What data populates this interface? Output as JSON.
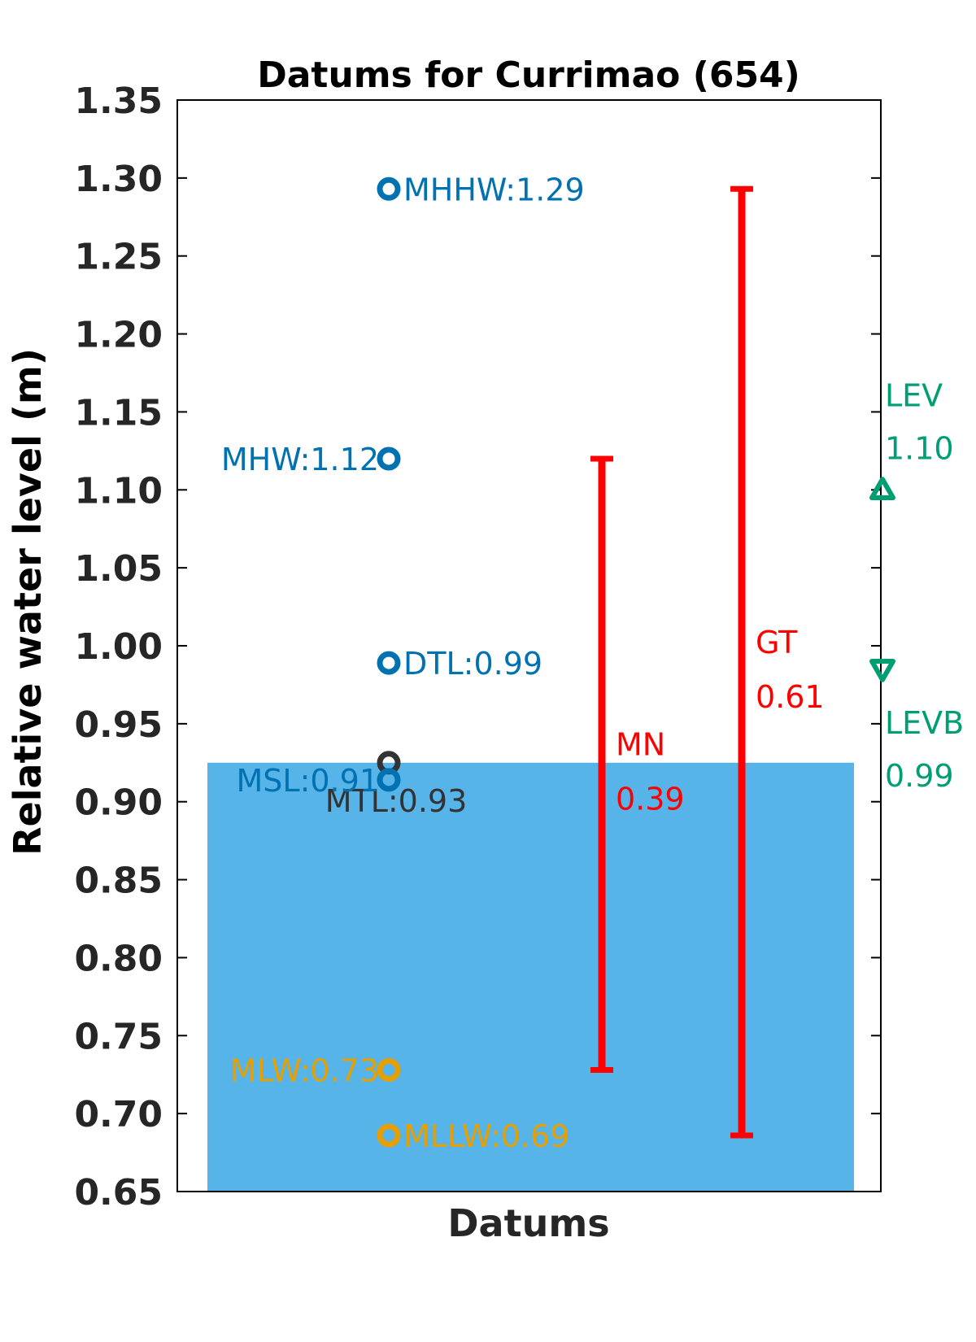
{
  "chart_data": {
    "type": "scatter",
    "title": "Datums for Currimao (654)",
    "xlabel": "Datums",
    "ylabel": "Relative water level (m)",
    "ylim": [
      0.65,
      1.35
    ],
    "yticks": [
      "0.65",
      "0.70",
      "0.75",
      "0.80",
      "0.85",
      "0.90",
      "0.95",
      "1.00",
      "1.05",
      "1.10",
      "1.15",
      "1.20",
      "1.25",
      "1.30",
      "1.35"
    ],
    "grid": false,
    "background_fill": {
      "from": 0.65,
      "to": 0.925,
      "color": "#56B4E9"
    },
    "datums": [
      {
        "name": "MHHW",
        "value": 1.293,
        "label": "MHHW:1.29",
        "color": "#0072B2",
        "label_side": "right"
      },
      {
        "name": "MHW",
        "value": 1.12,
        "label": "MHW:1.12",
        "color": "#0072B2",
        "label_side": "left"
      },
      {
        "name": "DTL",
        "value": 0.989,
        "label": "DTL:0.99",
        "color": "#0072B2",
        "label_side": "right"
      },
      {
        "name": "MTL",
        "value": 0.925,
        "label": "MTL:0.93",
        "color": "#333333",
        "label_side": "below"
      },
      {
        "name": "MSL",
        "value": 0.914,
        "label": "MSL:0.91",
        "color": "#0072B2",
        "label_side": "left"
      },
      {
        "name": "MLW",
        "value": 0.728,
        "label": "MLW:0.73",
        "color": "#E69F00",
        "label_side": "left"
      },
      {
        "name": "MLLW",
        "value": 0.686,
        "label": "MLLW:0.69",
        "color": "#E69F00",
        "label_side": "right"
      }
    ],
    "ranges": [
      {
        "name": "MN",
        "from": 0.728,
        "to": 1.12,
        "label_name": "MN",
        "label_value": "0.39",
        "color": "#FF0000"
      },
      {
        "name": "GT",
        "from": 0.686,
        "to": 1.293,
        "label_name": "GT",
        "label_value": "0.61",
        "color": "#FF0000"
      }
    ],
    "levels": [
      {
        "name": "LEV",
        "value": 1.1,
        "label_name": "LEV",
        "label_value": "1.10",
        "marker": "triangle-up",
        "color": "#009E73"
      },
      {
        "name": "LEVB",
        "value": 0.985,
        "label_name": "LEVB",
        "label_value": "0.99",
        "marker": "triangle-down",
        "color": "#009E73"
      }
    ]
  }
}
